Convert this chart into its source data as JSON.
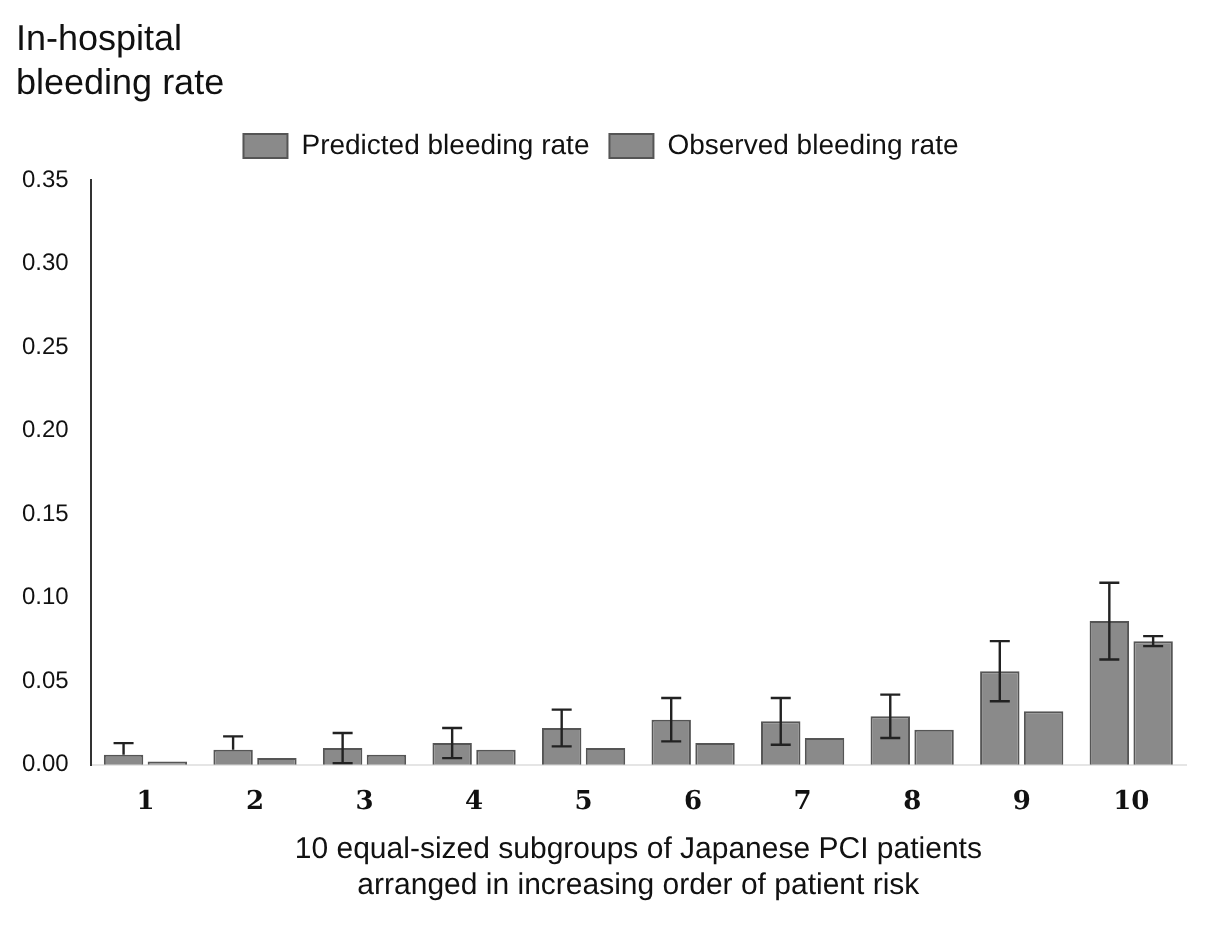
{
  "chart_data": {
    "type": "bar",
    "ylabel": "In-hospital\nbleeding rate",
    "xlabel": "10 equal-sized subgroups of Japanese PCI patients\narranged in increasing order of patient risk",
    "categories": [
      "1",
      "2",
      "3",
      "4",
      "5",
      "6",
      "7",
      "8",
      "9",
      "10"
    ],
    "series": [
      {
        "name": "Predicted bleeding rate",
        "color": "#8a8a8a",
        "values": [
          0.006,
          0.009,
          0.01,
          0.013,
          0.022,
          0.027,
          0.026,
          0.029,
          0.056,
          0.086
        ],
        "errors": [
          [
            0.006,
            0.013
          ],
          [
            0.009,
            0.017
          ],
          0.009,
          0.009,
          0.011,
          0.013,
          0.014,
          0.013,
          0.018,
          0.023
        ]
      },
      {
        "name": "Observed bleeding rate",
        "color": "#8a8a8a",
        "values": [
          0.002,
          0.004,
          0.006,
          0.009,
          0.01,
          0.013,
          0.016,
          0.021,
          0.032,
          0.074
        ],
        "errors": [
          null,
          null,
          null,
          null,
          null,
          null,
          null,
          null,
          null,
          0.003
        ]
      }
    ],
    "ylim": [
      0,
      0.35
    ],
    "yticks": [
      {
        "value": 0,
        "label": "0.00"
      },
      0.05,
      {
        "value": 0.1,
        "label": "0.10"
      },
      0.15,
      {
        "value": 0.2,
        "label": "0.20"
      },
      0.25,
      {
        "value": 0.3,
        "label": "0.30"
      },
      0.35
    ],
    "grid": false,
    "legend": "top"
  }
}
